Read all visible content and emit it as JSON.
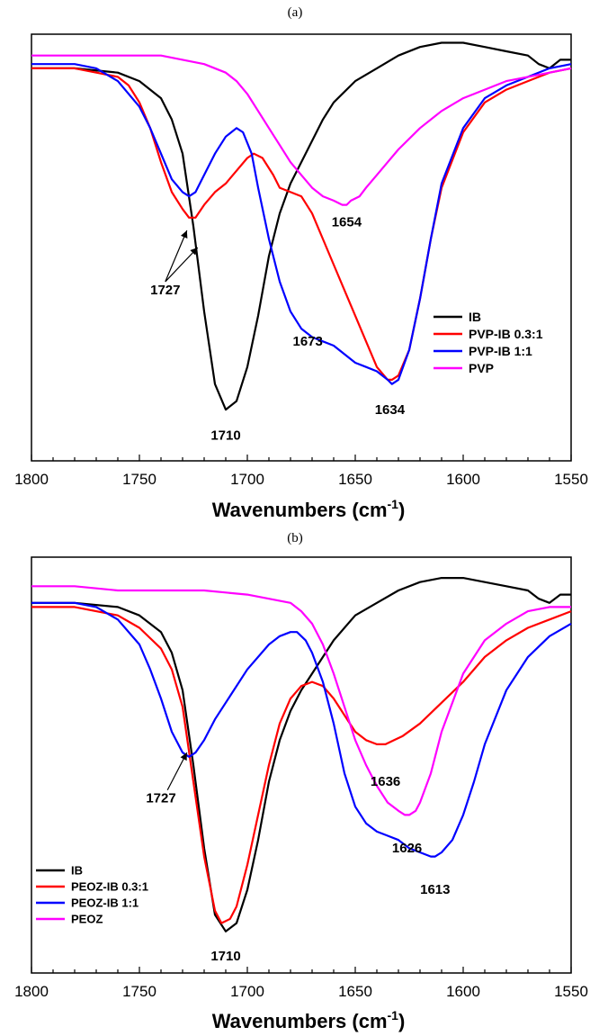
{
  "panels": [
    {
      "label": "(a)"
    },
    {
      "label": "(b)"
    }
  ],
  "chart_data": [
    {
      "type": "line",
      "panel": "(a)",
      "xlabel": "Wavenumbers (cm",
      "xlabel_sup": "-1",
      "xlabel_close": ")",
      "xlim": [
        1800,
        1550
      ],
      "xticks": [
        "1800",
        "1750",
        "1700",
        "1650",
        "1600",
        "1550"
      ],
      "ylim": [
        0,
        1
      ],
      "legend_position": "right-middle",
      "series": [
        {
          "name": "IB",
          "color": "#000000",
          "x": [
            1800,
            1780,
            1760,
            1750,
            1740,
            1735,
            1730,
            1725,
            1720,
            1715,
            1710,
            1705,
            1700,
            1695,
            1690,
            1685,
            1680,
            1675,
            1670,
            1665,
            1660,
            1650,
            1640,
            1630,
            1620,
            1610,
            1600,
            1590,
            1580,
            1570,
            1565,
            1560,
            1555,
            1550
          ],
          "y": [
            0.92,
            0.92,
            0.91,
            0.89,
            0.85,
            0.8,
            0.72,
            0.55,
            0.35,
            0.18,
            0.12,
            0.14,
            0.22,
            0.34,
            0.48,
            0.58,
            0.65,
            0.7,
            0.75,
            0.8,
            0.84,
            0.89,
            0.92,
            0.95,
            0.97,
            0.98,
            0.98,
            0.97,
            0.96,
            0.95,
            0.93,
            0.92,
            0.94,
            0.94
          ]
        },
        {
          "name": "PVP-IB 0.3:1",
          "color": "#ff0000",
          "x": [
            1800,
            1780,
            1760,
            1755,
            1750,
            1745,
            1740,
            1735,
            1730,
            1727,
            1724,
            1720,
            1715,
            1710,
            1705,
            1700,
            1697,
            1693,
            1688,
            1685,
            1680,
            1675,
            1670,
            1665,
            1660,
            1655,
            1650,
            1645,
            1640,
            1635,
            1633,
            1630,
            1625,
            1620,
            1615,
            1610,
            1600,
            1590,
            1580,
            1570,
            1560,
            1550
          ],
          "y": [
            0.92,
            0.92,
            0.9,
            0.88,
            0.84,
            0.78,
            0.7,
            0.63,
            0.59,
            0.57,
            0.57,
            0.6,
            0.63,
            0.65,
            0.68,
            0.71,
            0.72,
            0.71,
            0.67,
            0.64,
            0.63,
            0.62,
            0.58,
            0.52,
            0.46,
            0.4,
            0.34,
            0.28,
            0.22,
            0.19,
            0.19,
            0.2,
            0.26,
            0.38,
            0.52,
            0.64,
            0.77,
            0.84,
            0.87,
            0.89,
            0.91,
            0.92
          ]
        },
        {
          "name": "PVP-IB 1:1",
          "color": "#0000ff",
          "x": [
            1800,
            1780,
            1770,
            1760,
            1750,
            1745,
            1740,
            1735,
            1730,
            1727,
            1724,
            1720,
            1715,
            1710,
            1705,
            1702,
            1698,
            1695,
            1690,
            1685,
            1680,
            1675,
            1670,
            1665,
            1660,
            1655,
            1650,
            1645,
            1640,
            1635,
            1633,
            1630,
            1625,
            1620,
            1615,
            1610,
            1600,
            1590,
            1580,
            1570,
            1560,
            1550
          ],
          "y": [
            0.93,
            0.93,
            0.92,
            0.89,
            0.83,
            0.78,
            0.72,
            0.66,
            0.63,
            0.62,
            0.63,
            0.67,
            0.72,
            0.76,
            0.78,
            0.77,
            0.72,
            0.64,
            0.52,
            0.42,
            0.35,
            0.31,
            0.29,
            0.28,
            0.27,
            0.25,
            0.23,
            0.22,
            0.21,
            0.19,
            0.18,
            0.19,
            0.26,
            0.38,
            0.52,
            0.65,
            0.78,
            0.85,
            0.88,
            0.9,
            0.92,
            0.93
          ]
        },
        {
          "name": "PVP",
          "color": "#ff00ff",
          "x": [
            1800,
            1780,
            1760,
            1740,
            1730,
            1720,
            1710,
            1705,
            1700,
            1695,
            1690,
            1685,
            1680,
            1675,
            1670,
            1665,
            1660,
            1656,
            1654,
            1652,
            1648,
            1645,
            1640,
            1635,
            1630,
            1620,
            1610,
            1600,
            1590,
            1580,
            1570,
            1560,
            1550
          ],
          "y": [
            0.95,
            0.95,
            0.95,
            0.95,
            0.94,
            0.93,
            0.91,
            0.89,
            0.86,
            0.82,
            0.78,
            0.74,
            0.7,
            0.67,
            0.64,
            0.62,
            0.61,
            0.6,
            0.6,
            0.61,
            0.62,
            0.64,
            0.67,
            0.7,
            0.73,
            0.78,
            0.82,
            0.85,
            0.87,
            0.89,
            0.9,
            0.91,
            0.92
          ]
        }
      ],
      "annotations": [
        {
          "text": "1727",
          "x": 1738,
          "y": 0.39
        },
        {
          "text": "1710",
          "x": 1710,
          "y": 0.05
        },
        {
          "text": "1673",
          "x": 1672,
          "y": 0.27
        },
        {
          "text": "1654",
          "x": 1654,
          "y": 0.55
        },
        {
          "text": "1634",
          "x": 1634,
          "y": 0.11
        }
      ]
    },
    {
      "type": "line",
      "panel": "(b)",
      "xlabel": "Wavenumbers (cm",
      "xlabel_sup": "-1",
      "xlabel_close": ")",
      "xlim": [
        1800,
        1550
      ],
      "xticks": [
        "1800",
        "1750",
        "1700",
        "1650",
        "1600",
        "1550"
      ],
      "ylim": [
        0,
        1
      ],
      "legend_position": "bottom-left",
      "series": [
        {
          "name": "IB",
          "color": "#000000",
          "x": [
            1800,
            1780,
            1760,
            1750,
            1740,
            1735,
            1730,
            1725,
            1720,
            1715,
            1710,
            1705,
            1700,
            1695,
            1690,
            1685,
            1680,
            1675,
            1670,
            1665,
            1660,
            1650,
            1640,
            1630,
            1620,
            1610,
            1600,
            1590,
            1580,
            1570,
            1565,
            1560,
            1555,
            1550
          ],
          "y": [
            0.89,
            0.89,
            0.88,
            0.86,
            0.82,
            0.77,
            0.68,
            0.5,
            0.3,
            0.14,
            0.1,
            0.12,
            0.2,
            0.32,
            0.46,
            0.56,
            0.63,
            0.68,
            0.72,
            0.76,
            0.8,
            0.86,
            0.89,
            0.92,
            0.94,
            0.95,
            0.95,
            0.94,
            0.93,
            0.92,
            0.9,
            0.89,
            0.91,
            0.91
          ]
        },
        {
          "name": "PEOZ-IB 0.3:1",
          "color": "#ff0000",
          "x": [
            1800,
            1780,
            1760,
            1750,
            1740,
            1735,
            1730,
            1725,
            1720,
            1715,
            1712,
            1708,
            1705,
            1700,
            1695,
            1690,
            1685,
            1680,
            1675,
            1670,
            1665,
            1660,
            1655,
            1650,
            1645,
            1640,
            1636,
            1632,
            1628,
            1620,
            1610,
            1600,
            1590,
            1580,
            1570,
            1560,
            1550
          ],
          "y": [
            0.88,
            0.88,
            0.86,
            0.83,
            0.78,
            0.73,
            0.64,
            0.46,
            0.28,
            0.15,
            0.12,
            0.13,
            0.16,
            0.26,
            0.38,
            0.5,
            0.6,
            0.66,
            0.69,
            0.7,
            0.69,
            0.66,
            0.62,
            0.58,
            0.56,
            0.55,
            0.55,
            0.56,
            0.57,
            0.6,
            0.65,
            0.7,
            0.76,
            0.8,
            0.83,
            0.85,
            0.87
          ]
        },
        {
          "name": "PEOZ-IB 1:1",
          "color": "#0000ff",
          "x": [
            1800,
            1780,
            1770,
            1760,
            1750,
            1745,
            1740,
            1735,
            1730,
            1727,
            1724,
            1720,
            1715,
            1710,
            1700,
            1690,
            1685,
            1680,
            1677,
            1673,
            1670,
            1665,
            1660,
            1655,
            1650,
            1645,
            1640,
            1635,
            1630,
            1625,
            1620,
            1615,
            1613,
            1610,
            1605,
            1600,
            1595,
            1590,
            1580,
            1570,
            1560,
            1550
          ],
          "y": [
            0.89,
            0.89,
            0.88,
            0.85,
            0.79,
            0.73,
            0.66,
            0.58,
            0.53,
            0.52,
            0.53,
            0.56,
            0.61,
            0.65,
            0.73,
            0.79,
            0.81,
            0.82,
            0.82,
            0.8,
            0.77,
            0.7,
            0.6,
            0.48,
            0.4,
            0.36,
            0.34,
            0.33,
            0.32,
            0.3,
            0.29,
            0.28,
            0.28,
            0.29,
            0.32,
            0.38,
            0.46,
            0.55,
            0.68,
            0.76,
            0.81,
            0.84
          ]
        },
        {
          "name": "PEOZ",
          "color": "#ff00ff",
          "x": [
            1800,
            1780,
            1760,
            1740,
            1720,
            1700,
            1690,
            1680,
            1675,
            1670,
            1665,
            1660,
            1655,
            1650,
            1645,
            1640,
            1635,
            1630,
            1627,
            1625,
            1622,
            1620,
            1615,
            1610,
            1600,
            1590,
            1580,
            1570,
            1560,
            1550
          ],
          "y": [
            0.93,
            0.93,
            0.92,
            0.92,
            0.92,
            0.91,
            0.9,
            0.89,
            0.87,
            0.84,
            0.79,
            0.72,
            0.64,
            0.56,
            0.5,
            0.45,
            0.41,
            0.39,
            0.38,
            0.38,
            0.39,
            0.41,
            0.48,
            0.58,
            0.72,
            0.8,
            0.84,
            0.87,
            0.88,
            0.88
          ]
        }
      ],
      "annotations": [
        {
          "text": "1727",
          "x": 1740,
          "y": 0.41
        },
        {
          "text": "1710",
          "x": 1710,
          "y": 0.03
        },
        {
          "text": "1636",
          "x": 1636,
          "y": 0.45
        },
        {
          "text": "1626",
          "x": 1626,
          "y": 0.29
        },
        {
          "text": "1613",
          "x": 1613,
          "y": 0.19
        }
      ]
    }
  ]
}
